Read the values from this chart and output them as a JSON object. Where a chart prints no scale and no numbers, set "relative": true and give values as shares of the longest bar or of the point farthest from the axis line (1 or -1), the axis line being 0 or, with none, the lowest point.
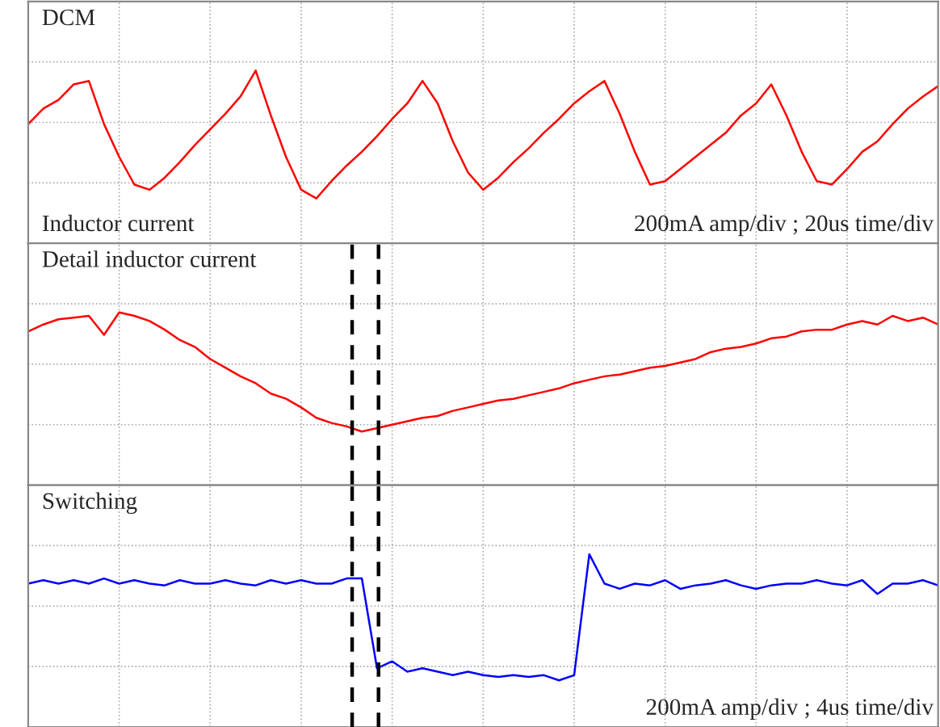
{
  "chart_data": [
    {
      "type": "line",
      "title": "DCM",
      "relative": true,
      "grid": true,
      "tick_labels": false,
      "categories": [
        null,
        null,
        null,
        null,
        null,
        null,
        null,
        null,
        null,
        null,
        null,
        null,
        null,
        null,
        null,
        null,
        null,
        null,
        null,
        null,
        null,
        null,
        null,
        null,
        null,
        null,
        null,
        null,
        null,
        null,
        null,
        null,
        null,
        null,
        null,
        null,
        null,
        null,
        null,
        null,
        null,
        null,
        null,
        null,
        null,
        null,
        null,
        null,
        null,
        null,
        null,
        null,
        null,
        null,
        null,
        null,
        null,
        null,
        null,
        null,
        null
      ],
      "annotations": [
        "Inductor current",
        "200mA amp/div ; 20us time/div"
      ],
      "series": [
        {
          "color": "#ff0000",
          "values": [
            0.69,
            0.78,
            0.83,
            0.92,
            0.94,
            0.69,
            0.5,
            0.34,
            0.31,
            0.38,
            0.47,
            0.57,
            0.66,
            0.75,
            0.85,
            1.0,
            0.74,
            0.5,
            0.31,
            0.26,
            0.36,
            0.45,
            0.53,
            0.62,
            0.72,
            0.81,
            0.94,
            0.81,
            0.59,
            0.41,
            0.31,
            0.38,
            0.47,
            0.55,
            0.64,
            0.72,
            0.81,
            0.88,
            0.94,
            0.75,
            0.53,
            0.34,
            0.36,
            0.43,
            0.5,
            0.57,
            0.64,
            0.74,
            0.81,
            0.92,
            0.74,
            0.53,
            0.36,
            0.34,
            0.43,
            0.53,
            0.59,
            0.69,
            0.78,
            0.85,
            0.91
          ]
        }
      ]
    },
    {
      "type": "line",
      "title": "Detail inductor current",
      "relative": true,
      "grid": true,
      "tick_labels": false,
      "categories": [
        null,
        null,
        null,
        null,
        null,
        null,
        null,
        null,
        null,
        null,
        null,
        null,
        null,
        null,
        null,
        null,
        null,
        null,
        null,
        null,
        null,
        null,
        null,
        null,
        null,
        null,
        null,
        null,
        null,
        null,
        null,
        null,
        null,
        null,
        null,
        null,
        null,
        null,
        null,
        null,
        null,
        null,
        null,
        null,
        null,
        null,
        null,
        null,
        null,
        null,
        null,
        null,
        null,
        null,
        null,
        null,
        null,
        null,
        null,
        null,
        null
      ],
      "series": [
        {
          "color": "#ff0000",
          "values": [
            0.89,
            0.93,
            0.96,
            0.97,
            0.98,
            0.87,
            1.0,
            0.98,
            0.95,
            0.9,
            0.84,
            0.8,
            0.73,
            0.68,
            0.63,
            0.59,
            0.53,
            0.5,
            0.45,
            0.39,
            0.36,
            0.34,
            0.31,
            0.33,
            0.35,
            0.37,
            0.39,
            0.4,
            0.43,
            0.45,
            0.47,
            0.49,
            0.5,
            0.52,
            0.54,
            0.56,
            0.59,
            0.61,
            0.63,
            0.64,
            0.66,
            0.68,
            0.69,
            0.71,
            0.73,
            0.77,
            0.79,
            0.8,
            0.82,
            0.85,
            0.86,
            0.89,
            0.9,
            0.9,
            0.93,
            0.95,
            0.93,
            0.98,
            0.95,
            0.97,
            0.93
          ]
        }
      ]
    },
    {
      "type": "line",
      "title": "Switching",
      "relative": true,
      "grid": true,
      "tick_labels": false,
      "categories": [
        null,
        null,
        null,
        null,
        null,
        null,
        null,
        null,
        null,
        null,
        null,
        null,
        null,
        null,
        null,
        null,
        null,
        null,
        null,
        null,
        null,
        null,
        null,
        null,
        null,
        null,
        null,
        null,
        null,
        null,
        null,
        null,
        null,
        null,
        null,
        null,
        null,
        null,
        null,
        null,
        null,
        null,
        null,
        null,
        null,
        null,
        null,
        null,
        null,
        null,
        null,
        null,
        null,
        null,
        null,
        null,
        null,
        null,
        null,
        null,
        null
      ],
      "annotations": [
        "200mA amp/div ; 4us time/div"
      ],
      "series": [
        {
          "color": "#0000ff",
          "values": [
            0.83,
            0.85,
            0.83,
            0.85,
            0.83,
            0.86,
            0.83,
            0.85,
            0.83,
            0.82,
            0.85,
            0.83,
            0.83,
            0.85,
            0.83,
            0.82,
            0.85,
            0.83,
            0.85,
            0.83,
            0.83,
            0.86,
            0.86,
            0.34,
            0.38,
            0.32,
            0.34,
            0.32,
            0.3,
            0.32,
            0.3,
            0.29,
            0.3,
            0.29,
            0.3,
            0.27,
            0.3,
            1.0,
            0.83,
            0.8,
            0.83,
            0.82,
            0.85,
            0.8,
            0.82,
            0.83,
            0.85,
            0.82,
            0.8,
            0.82,
            0.83,
            0.83,
            0.85,
            0.83,
            0.82,
            0.85,
            0.77,
            0.83,
            0.83,
            0.85,
            0.82
          ]
        }
      ]
    }
  ]
}
